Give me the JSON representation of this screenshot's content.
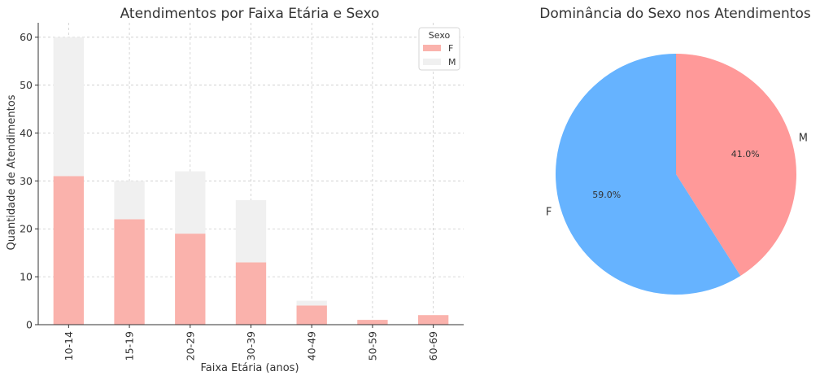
{
  "chart_data": [
    {
      "type": "bar",
      "stacked": true,
      "title": "Atendimentos por Faixa Etária e Sexo",
      "xlabel": "Faixa Etária (anos)",
      "ylabel": "Quantidade de Atendimentos",
      "categories": [
        "10-14",
        "15-19",
        "20-29",
        "30-39",
        "40-49",
        "50-59",
        "60-69"
      ],
      "series": [
        {
          "name": "F",
          "values": [
            31,
            22,
            19,
            13,
            4,
            1,
            2
          ],
          "color": "#FAB2AC"
        },
        {
          "name": "M",
          "values": [
            29,
            8,
            13,
            13,
            1,
            0,
            0
          ],
          "color": "#F0F0F0"
        }
      ],
      "ylim": [
        0,
        63
      ],
      "yticks": [
        0,
        10,
        20,
        30,
        40,
        50,
        60
      ],
      "grid": true,
      "legend": {
        "title": "Sexo",
        "position": "top-right"
      }
    },
    {
      "type": "pie",
      "title": "Dominância do Sexo nos Atendimentos",
      "slices": [
        {
          "label": "F",
          "value": 59.0,
          "pct_label": "59.0%",
          "color": "#66B3FF"
        },
        {
          "label": "M",
          "value": 41.0,
          "pct_label": "41.0%",
          "color": "#FF9999"
        }
      ],
      "start_angle_deg": 90,
      "counterclock": false
    }
  ]
}
